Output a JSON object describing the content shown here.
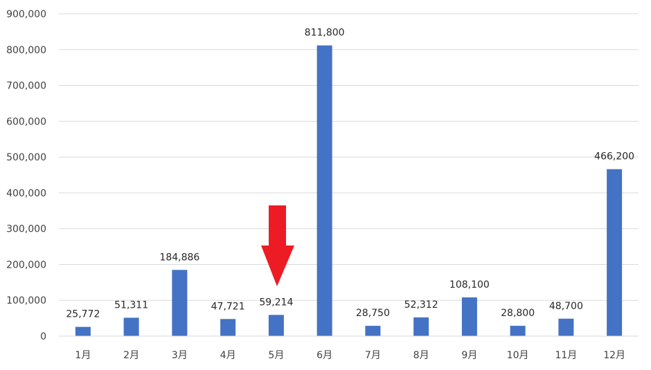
{
  "chart_data": {
    "type": "bar",
    "categories": [
      "1月",
      "2月",
      "3月",
      "4月",
      "5月",
      "6月",
      "7月",
      "8月",
      "9月",
      "10月",
      "11月",
      "12月"
    ],
    "values": [
      25772,
      51311,
      184886,
      47721,
      59214,
      811800,
      28750,
      52312,
      108100,
      28800,
      48700,
      466200
    ],
    "value_labels": [
      "25,772",
      "51,311",
      "184,886",
      "47,721",
      "59,214",
      "811,800",
      "28,750",
      "52,312",
      "108,100",
      "28,800",
      "48,700",
      "466,200"
    ],
    "y_ticks": [
      0,
      100000,
      200000,
      300000,
      400000,
      500000,
      600000,
      700000,
      800000,
      900000
    ],
    "y_tick_labels": [
      "0",
      "100,000",
      "200,000",
      "300,000",
      "400,000",
      "500,000",
      "600,000",
      "700,000",
      "800,000",
      "900,000"
    ],
    "ylim": [
      0,
      900000
    ],
    "grid": true,
    "legend": false,
    "bar_color": "#4472C4",
    "annotation": {
      "type": "arrow",
      "direction": "down",
      "points_to": "5月",
      "color": "#ED1C24"
    }
  }
}
